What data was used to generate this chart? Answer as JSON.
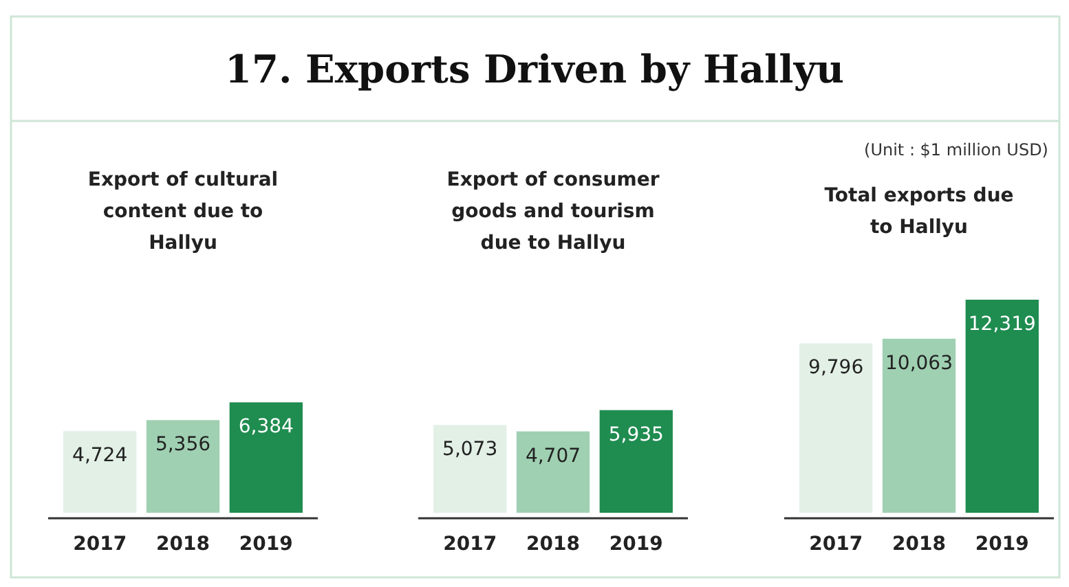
{
  "chart_data": [
    {
      "type": "bar",
      "title": "17. Exports Driven by Hallyu",
      "subtitle": "Export of cultural content due to Hallyu",
      "categories": [
        "2017",
        "2018",
        "2019"
      ],
      "values": [
        4724,
        5356,
        6384
      ],
      "value_labels": [
        "4,724",
        "5,356",
        "6,384"
      ],
      "colors": [
        "#e2f0e6",
        "#9fd0b2",
        "#1f8c50"
      ]
    },
    {
      "type": "bar",
      "subtitle": "Export of consumer goods and tourism due to Hallyu",
      "categories": [
        "2017",
        "2018",
        "2019"
      ],
      "values": [
        5073,
        4707,
        5935
      ],
      "value_labels": [
        "5,073",
        "4,707",
        "5,935"
      ],
      "colors": [
        "#e2f0e6",
        "#9fd0b2",
        "#1f8c50"
      ]
    },
    {
      "type": "bar",
      "subtitle": "Total exports due to Hallyu",
      "annotations": [
        "(Unit : $1 million USD)"
      ],
      "categories": [
        "2017",
        "2018",
        "2019"
      ],
      "values": [
        9796,
        10063,
        12319
      ],
      "value_labels": [
        "9,796",
        "10,063",
        "12,319"
      ],
      "colors": [
        "#e2f0e6",
        "#9fd0b2",
        "#1f8c50"
      ]
    }
  ]
}
